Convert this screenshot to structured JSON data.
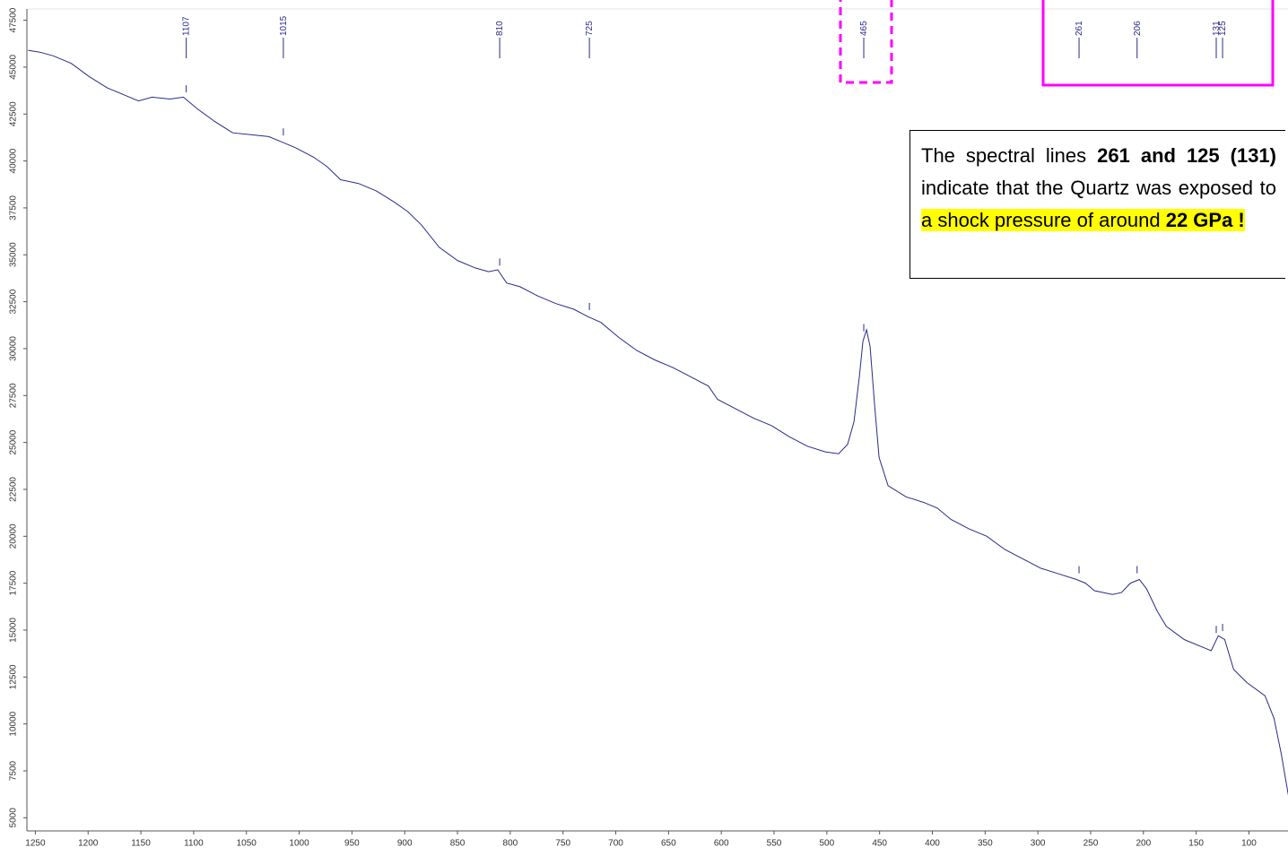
{
  "chart_data": {
    "type": "line",
    "x": [
      1256.8,
      1245.7,
      1233.0,
      1216.0,
      1199.0,
      1182.0,
      1165.0,
      1152.2,
      1139.4,
      1122.4,
      1109.7,
      1096.9,
      1079.9,
      1062.9,
      1045.9,
      1028.9,
      1016.1,
      1003.3,
      986.3,
      973.6,
      960.8,
      943.8,
      926.8,
      909.8,
      897.0,
      884.3,
      867.3,
      850.2,
      833.2,
      820.5,
      811.9,
      803.5,
      790.7,
      773.7,
      756.7,
      739.7,
      726.1,
      714.2,
      697.2,
      680.1,
      663.1,
      646.1,
      629.1,
      612.1,
      603.6,
      586.6,
      569.6,
      552.5,
      535.5,
      518.5,
      501.5,
      488.8,
      480.3,
      474.3,
      469.2,
      465.8,
      462.4,
      459.0,
      454.7,
      450.5,
      442.0,
      425.0,
      408.0,
      395.2,
      382.4,
      365.4,
      348.4,
      331.4,
      314.4,
      297.4,
      280.4,
      263.4,
      254.9,
      246.4,
      229.3,
      220.8,
      212.3,
      203.8,
      197.0,
      186.8,
      178.3,
      161.3,
      144.3,
      135.8,
      129.0,
      123.0,
      114.5,
      101.8,
      84.8,
      76.3,
      69.4,
      62.7
    ],
    "values": [
      45900,
      45800,
      45600,
      45200,
      44500,
      43900,
      43500,
      43200,
      43400,
      43300,
      43400,
      42800,
      42100,
      41500,
      41400,
      41300,
      41000,
      40700,
      40200,
      39700,
      39000,
      38800,
      38400,
      37800,
      37300,
      36600,
      35400,
      34700,
      34300,
      34100,
      34200,
      33500,
      33300,
      32800,
      32400,
      32100,
      31700,
      31400,
      30600,
      29900,
      29400,
      29000,
      28500,
      28000,
      27300,
      26800,
      26300,
      25900,
      25300,
      24800,
      24500,
      24400,
      24900,
      26100,
      28500,
      30400,
      31000,
      30100,
      27000,
      24200,
      22700,
      22100,
      21800,
      21500,
      20900,
      20400,
      20000,
      19300,
      18800,
      18300,
      18000,
      17700,
      17500,
      17100,
      16900,
      17000,
      17500,
      17700,
      17200,
      16000,
      15200,
      14500,
      14100,
      13900,
      14700,
      14500,
      12900,
      12200,
      11500,
      10300,
      8400,
      6200
    ],
    "color": "#2a2a8c",
    "xlim": [
      1258,
      63
    ],
    "ylim": [
      4300,
      48100
    ],
    "xticks": [
      1250,
      1200,
      1150,
      1100,
      1050,
      1000,
      950,
      900,
      850,
      800,
      750,
      700,
      650,
      600,
      550,
      500,
      450,
      400,
      350,
      300,
      250,
      200,
      150,
      100
    ],
    "yticks": [
      47500,
      45000,
      42500,
      40000,
      37500,
      35000,
      32500,
      30000,
      27500,
      25000,
      22500,
      20000,
      17500,
      15000,
      12500,
      10000,
      7500,
      5000
    ],
    "peaks": [
      1107,
      1015,
      810,
      725,
      465,
      261,
      206,
      131,
      125
    ],
    "annotation": [
      "The spectral lines ",
      "261 and 125 (131)",
      " indicate that the Quartz was exposed to ",
      "a shock pressure of around ",
      "22 GPa !"
    ]
  }
}
